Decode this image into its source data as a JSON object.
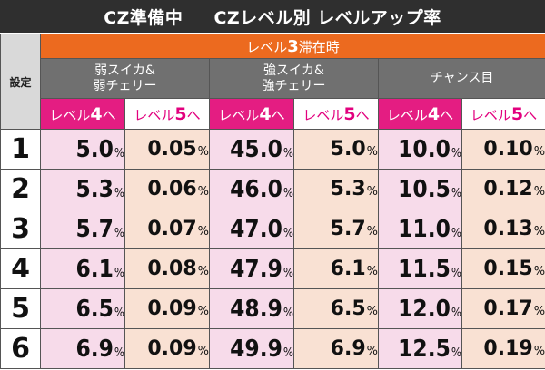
{
  "title": {
    "left": "CZ準備中",
    "right": "CZレベル別 レベルアップ率"
  },
  "header": {
    "setting_label": "設定",
    "level3_prefix": "レベル",
    "level3_num": "3",
    "level3_suffix": "滞在時",
    "categories": [
      {
        "line1": "弱スイカ&",
        "line2": "弱チェリー"
      },
      {
        "line1": "強スイカ&",
        "line2": "強チェリー"
      },
      {
        "line1": "チャンス目",
        "line2": ""
      }
    ],
    "to4": {
      "prefix": "レベル",
      "num": "4",
      "suffix": "へ"
    },
    "to5": {
      "prefix": "レベル",
      "num": "5",
      "suffix": "へ"
    }
  },
  "percent_sign": "%",
  "rows": [
    {
      "setting": "1",
      "values": [
        "5.0",
        "0.05",
        "45.0",
        "5.0",
        "10.0",
        "0.10"
      ]
    },
    {
      "setting": "2",
      "values": [
        "5.3",
        "0.06",
        "46.0",
        "5.3",
        "10.5",
        "0.12"
      ]
    },
    {
      "setting": "3",
      "values": [
        "5.7",
        "0.07",
        "47.0",
        "5.7",
        "11.0",
        "0.13"
      ]
    },
    {
      "setting": "4",
      "values": [
        "6.1",
        "0.08",
        "47.9",
        "6.1",
        "11.5",
        "0.15"
      ]
    },
    {
      "setting": "5",
      "values": [
        "6.5",
        "0.09",
        "48.9",
        "6.5",
        "12.0",
        "0.17"
      ]
    },
    {
      "setting": "6",
      "values": [
        "6.9",
        "0.09",
        "49.9",
        "6.9",
        "12.5",
        "0.19"
      ]
    }
  ],
  "colors": {
    "title_bg": "#2f2f2f",
    "level3_bg": "#ec6a1f",
    "category_bg": "#707070",
    "to4_bg": "#e41d82",
    "to5_text": "#e2007e",
    "cell4_bg": "#f7dbea",
    "cell5_bg": "#f9e1d3"
  }
}
